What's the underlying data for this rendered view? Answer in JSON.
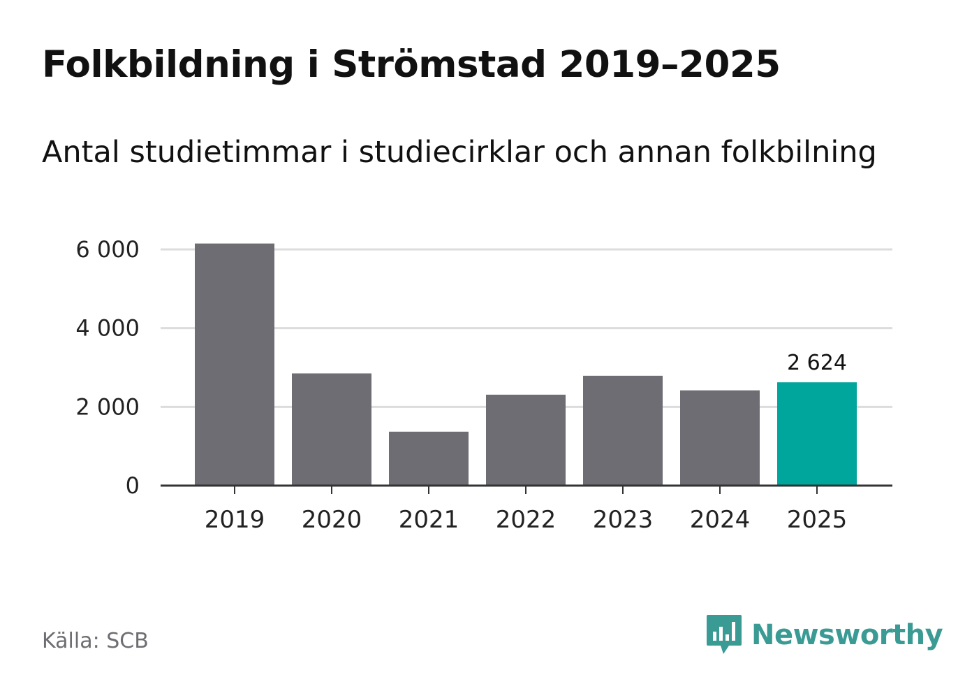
{
  "header": {
    "title": "Folkbildning i Strömstad 2019–2025",
    "subtitle": "Antal studietimmar i studiecirklar och annan folkbilning"
  },
  "footer": {
    "source": "Källa: SCB",
    "brand": "Newsworthy"
  },
  "colors": {
    "bar": "#6e6d73",
    "highlight": "#00a59b",
    "grid": "#dcdcdc",
    "axis": "#333333",
    "brand": "#3a9a94"
  },
  "chart_data": {
    "type": "bar",
    "title": "Folkbildning i Strömstad 2019–2025",
    "subtitle": "Antal studietimmar i studiecirklar och annan folkbilning",
    "xlabel": "",
    "ylabel": "",
    "categories": [
      "2019",
      "2020",
      "2021",
      "2022",
      "2023",
      "2024",
      "2025"
    ],
    "values": [
      6150,
      2850,
      1370,
      2310,
      2790,
      2420,
      2624
    ],
    "highlight_index": 6,
    "data_labels": [
      {
        "index": 6,
        "text": "2 624"
      }
    ],
    "ylim": [
      0,
      6000
    ],
    "yticks": [
      {
        "value": 0,
        "label": "0"
      },
      {
        "value": 2000,
        "label": "2 000"
      },
      {
        "value": 4000,
        "label": "4 000"
      },
      {
        "value": 6000,
        "label": "6 000"
      }
    ],
    "grid": true,
    "legend": "none"
  }
}
